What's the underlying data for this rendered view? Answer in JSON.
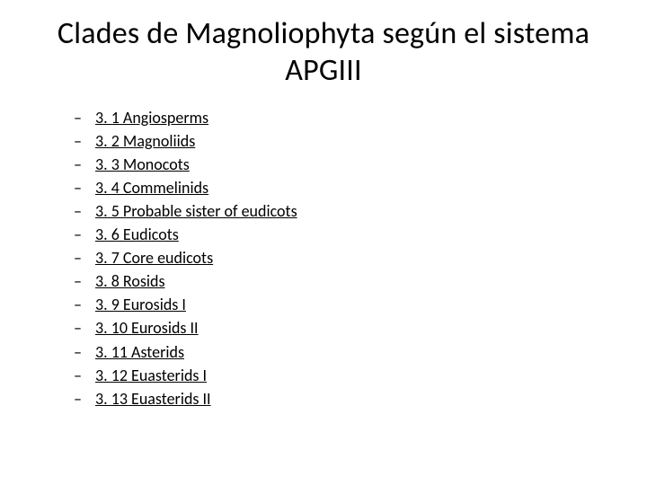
{
  "title": "Clades de Magnoliophyta según el sistema APGIII",
  "items": [
    {
      "label": "3. 1 Angiosperms"
    },
    {
      "label": "3. 2 Magnoliids"
    },
    {
      "label": "3. 3 Monocots"
    },
    {
      "label": "3. 4 Commelinids"
    },
    {
      "label": "3. 5 Probable sister of eudicots"
    },
    {
      "label": "3. 6 Eudicots"
    },
    {
      "label": "3. 7 Core eudicots"
    },
    {
      "label": "3. 8 Rosids"
    },
    {
      "label": "3. 9 Eurosids I"
    },
    {
      "label": "3. 10 Eurosids II"
    },
    {
      "label": "3. 11 Asterids"
    },
    {
      "label": "3. 12 Euasterids I"
    },
    {
      "label": "3. 13 Euasterids II"
    }
  ],
  "style": {
    "background_color": "#ffffff",
    "text_color": "#000000",
    "link_color": "#000000",
    "title_fontsize": 34,
    "item_fontsize": 18,
    "bullet_char": "–",
    "font_family": "Calibri"
  }
}
